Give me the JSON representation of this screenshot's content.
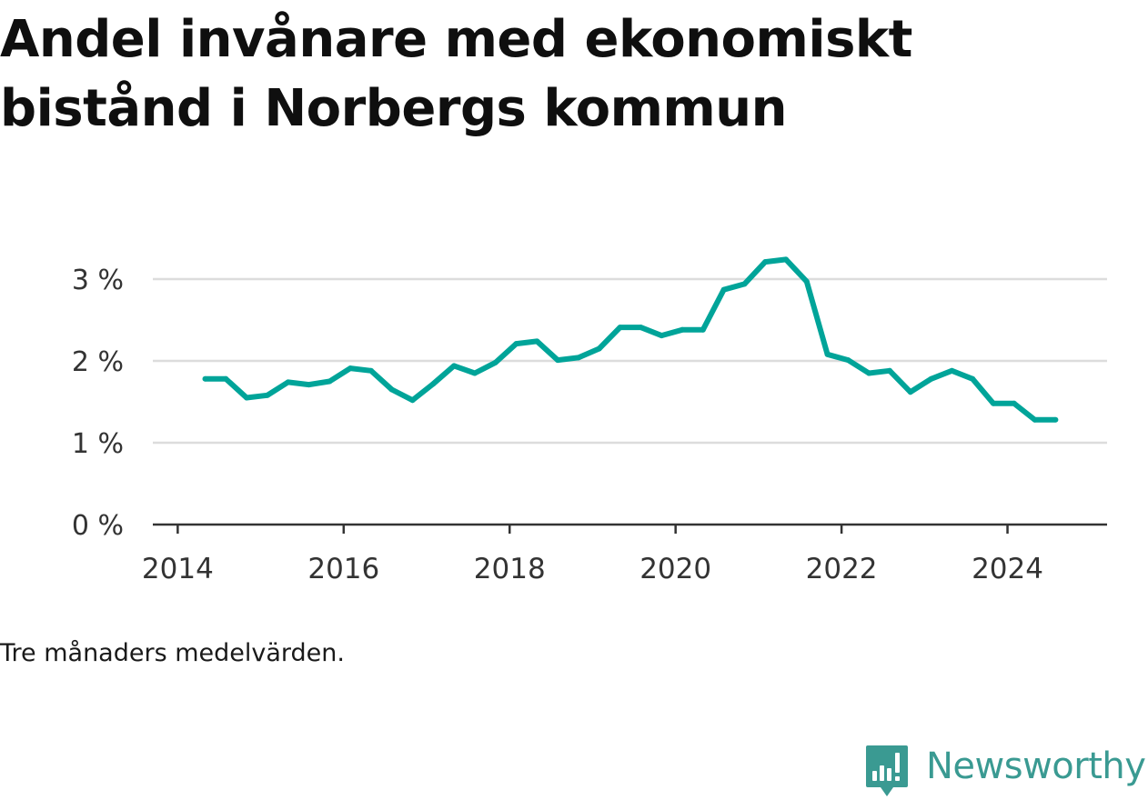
{
  "title": "Andel invånare med ekonomiskt bistånd i Norbergs kommun",
  "note": "Tre månaders medelvärden.",
  "brand": {
    "name": "Newsworthy",
    "color": "#3a9a92",
    "icon": "newsworthy-logo-icon"
  },
  "colors": {
    "line": "#00a499",
    "grid": "#dcdcdc",
    "axis": "#333333",
    "text": "#111111"
  },
  "chart_data": {
    "type": "line",
    "title": "Andel invånare med ekonomiskt bistånd i Norbergs kommun",
    "xlabel": "",
    "ylabel": "",
    "x_unit": "year",
    "xlim": [
      2013.7,
      2025.2
    ],
    "ylim": [
      0,
      3.3
    ],
    "y_ticks": [
      0,
      1,
      2,
      3
    ],
    "y_tick_labels": [
      "0 %",
      "1 %",
      "2 %",
      "3 %"
    ],
    "x_ticks": [
      2014,
      2016,
      2018,
      2020,
      2022,
      2024
    ],
    "x_tick_labels": [
      "2014",
      "2016",
      "2018",
      "2020",
      "2022",
      "2024"
    ],
    "grid": true,
    "legend": "none",
    "series": [
      {
        "color": "#00a499",
        "x": [
          2014.33,
          2014.58,
          2014.83,
          2015.08,
          2015.33,
          2015.58,
          2015.83,
          2016.08,
          2016.33,
          2016.58,
          2016.83,
          2017.08,
          2017.33,
          2017.58,
          2017.83,
          2018.08,
          2018.33,
          2018.58,
          2018.83,
          2019.08,
          2019.33,
          2019.58,
          2019.83,
          2020.08,
          2020.33,
          2020.58,
          2020.83,
          2021.08,
          2021.33,
          2021.58,
          2021.83,
          2022.08,
          2022.33,
          2022.58,
          2022.83,
          2023.08,
          2023.33,
          2023.58,
          2023.83,
          2024.08,
          2024.33,
          2024.58
        ],
        "values": [
          1.78,
          1.78,
          1.55,
          1.58,
          1.74,
          1.71,
          1.75,
          1.91,
          1.88,
          1.65,
          1.52,
          1.72,
          1.94,
          1.85,
          1.98,
          2.21,
          2.24,
          2.01,
          2.04,
          2.15,
          2.41,
          2.41,
          2.31,
          2.38,
          2.38,
          2.87,
          2.94,
          3.21,
          3.24,
          2.97,
          2.08,
          2.01,
          1.85,
          1.88,
          1.62,
          1.78,
          1.88,
          1.78,
          1.48,
          1.48,
          1.28,
          1.28
        ]
      }
    ]
  }
}
